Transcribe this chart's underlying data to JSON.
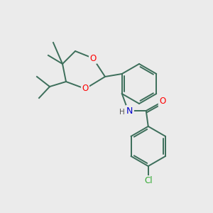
{
  "bg_color": "#ebebeb",
  "bond_color": "#3c6e5a",
  "atom_colors": {
    "O": "#ff0000",
    "N": "#0000cc",
    "Cl": "#33aa33",
    "H": "#555555"
  },
  "figsize": [
    3.0,
    3.0
  ],
  "dpi": 100
}
